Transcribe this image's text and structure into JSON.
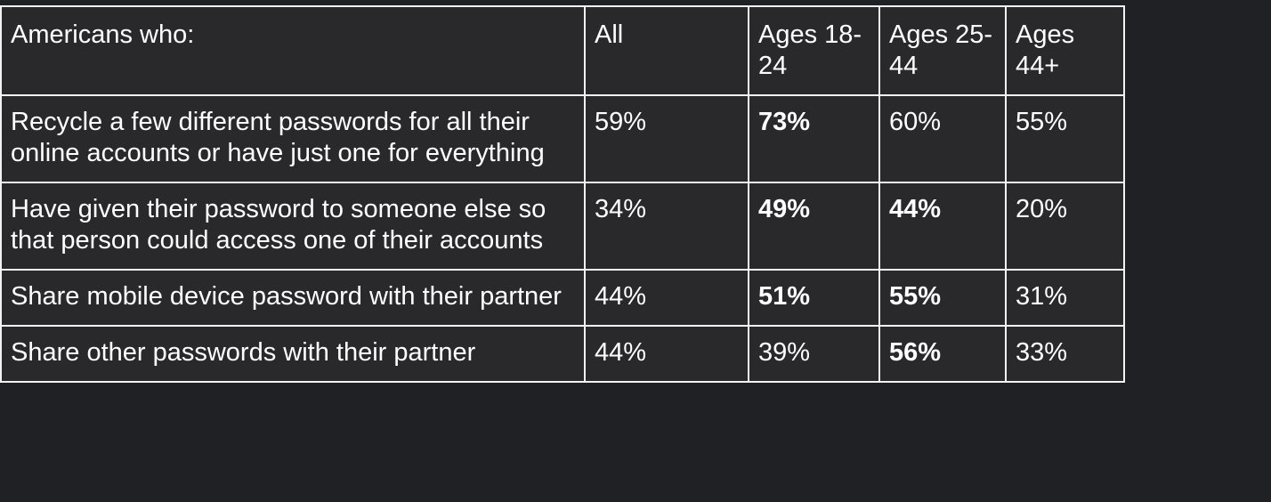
{
  "table": {
    "header": [
      "Americans who:",
      "All",
      "Ages 18-24",
      "Ages 25-44",
      "Ages 44+"
    ],
    "rows": [
      [
        {
          "text": "Recycle a few different passwords for all their online accounts or have just one for everything",
          "bold": false
        },
        {
          "text": "59%",
          "bold": false
        },
        {
          "text": "73%",
          "bold": true
        },
        {
          "text": "60%",
          "bold": false
        },
        {
          "text": "55%",
          "bold": false
        }
      ],
      [
        {
          "text": "Have given their password to someone else so that person could access one of their accounts",
          "bold": false
        },
        {
          "text": "34%",
          "bold": false
        },
        {
          "text": "49%",
          "bold": true
        },
        {
          "text": "44%",
          "bold": true
        },
        {
          "text": "20%",
          "bold": false
        }
      ],
      [
        {
          "text": "Share mobile device password with their partner",
          "bold": false
        },
        {
          "text": "44%",
          "bold": false
        },
        {
          "text": "51%",
          "bold": true
        },
        {
          "text": "55%",
          "bold": true
        },
        {
          "text": "31%",
          "bold": false
        }
      ],
      [
        {
          "text": "Share other passwords with their partner",
          "bold": false
        },
        {
          "text": "44%",
          "bold": false
        },
        {
          "text": "39%",
          "bold": false
        },
        {
          "text": "56%",
          "bold": true
        },
        {
          "text": "33%",
          "bold": false
        }
      ]
    ]
  }
}
